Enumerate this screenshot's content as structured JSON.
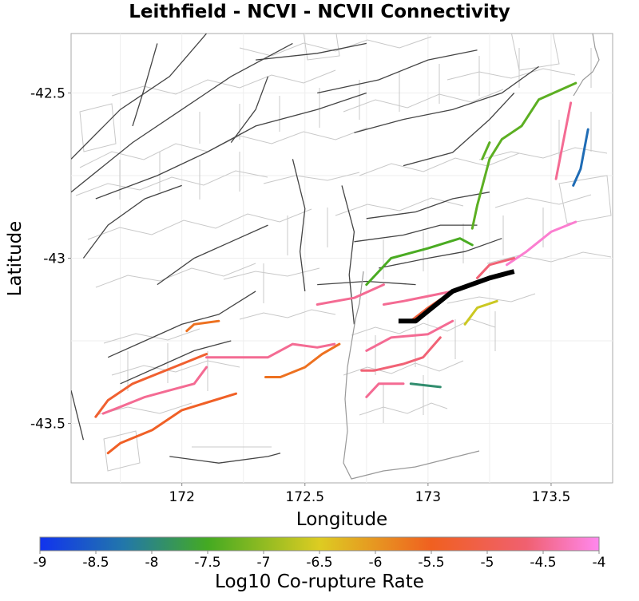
{
  "title": "Leithfield - NCVI - NCVII Connectivity",
  "map": {
    "x_axis_label": "Longitude",
    "y_axis_label": "Latitude",
    "lon_range": [
      171.55,
      173.75
    ],
    "lat_range": [
      -43.68,
      -42.32
    ],
    "x_ticks": [
      {
        "value": 172,
        "label": "172"
      },
      {
        "value": 172.5,
        "label": "172.5"
      },
      {
        "value": 173,
        "label": "173"
      },
      {
        "value": 173.5,
        "label": "173.5"
      }
    ],
    "y_ticks": [
      {
        "value": -42.5,
        "label": "-42.5"
      },
      {
        "value": -43,
        "label": "-43"
      },
      {
        "value": -43.5,
        "label": "-43.5"
      }
    ],
    "background_faults": [
      [
        [
          171.55,
          -42.7
        ],
        [
          171.75,
          -42.55
        ],
        [
          171.95,
          -42.45
        ],
        [
          172.1,
          -42.32
        ]
      ],
      [
        [
          171.55,
          -42.8
        ],
        [
          171.8,
          -42.65
        ],
        [
          172.0,
          -42.55
        ],
        [
          172.2,
          -42.45
        ],
        [
          172.45,
          -42.35
        ]
      ],
      [
        [
          171.65,
          -42.82
        ],
        [
          171.9,
          -42.75
        ],
        [
          172.1,
          -42.68
        ],
        [
          172.3,
          -42.6
        ],
        [
          172.55,
          -42.55
        ],
        [
          172.75,
          -42.5
        ]
      ],
      [
        [
          172.3,
          -42.4
        ],
        [
          172.55,
          -42.38
        ],
        [
          172.75,
          -42.35
        ]
      ],
      [
        [
          172.55,
          -42.5
        ],
        [
          172.8,
          -42.46
        ],
        [
          173.0,
          -42.4
        ],
        [
          173.2,
          -42.37
        ]
      ],
      [
        [
          172.7,
          -42.62
        ],
        [
          172.9,
          -42.58
        ],
        [
          173.1,
          -42.55
        ],
        [
          173.3,
          -42.5
        ],
        [
          173.45,
          -42.42
        ]
      ],
      [
        [
          172.9,
          -42.72
        ],
        [
          173.1,
          -42.68
        ],
        [
          173.25,
          -42.58
        ],
        [
          173.35,
          -42.5
        ]
      ],
      [
        [
          171.6,
          -43.0
        ],
        [
          171.7,
          -42.9
        ],
        [
          171.85,
          -42.82
        ],
        [
          172.0,
          -42.78
        ]
      ],
      [
        [
          172.45,
          -42.7
        ],
        [
          172.5,
          -42.85
        ],
        [
          172.48,
          -42.98
        ],
        [
          172.5,
          -43.1
        ]
      ],
      [
        [
          172.65,
          -42.78
        ],
        [
          172.7,
          -42.92
        ],
        [
          172.68,
          -43.05
        ],
        [
          172.7,
          -43.2
        ]
      ],
      [
        [
          172.75,
          -42.88
        ],
        [
          172.95,
          -42.86
        ],
        [
          173.1,
          -42.82
        ],
        [
          173.25,
          -42.8
        ]
      ],
      [
        [
          172.7,
          -42.95
        ],
        [
          172.9,
          -42.93
        ],
        [
          173.05,
          -42.9
        ],
        [
          173.2,
          -42.9
        ]
      ],
      [
        [
          172.8,
          -43.03
        ],
        [
          173.0,
          -43.0
        ],
        [
          173.15,
          -42.98
        ],
        [
          173.3,
          -42.94
        ]
      ],
      [
        [
          172.55,
          -43.08
        ],
        [
          172.75,
          -43.07
        ],
        [
          172.95,
          -43.08
        ]
      ],
      [
        [
          171.9,
          -43.08
        ],
        [
          172.05,
          -43.0
        ],
        [
          172.2,
          -42.95
        ],
        [
          172.35,
          -42.9
        ]
      ],
      [
        [
          171.7,
          -43.3
        ],
        [
          171.85,
          -43.25
        ],
        [
          172.0,
          -43.2
        ],
        [
          172.15,
          -43.17
        ],
        [
          172.3,
          -43.1
        ]
      ],
      [
        [
          171.75,
          -43.38
        ],
        [
          171.9,
          -43.33
        ],
        [
          172.05,
          -43.28
        ],
        [
          172.2,
          -43.25
        ]
      ],
      [
        [
          171.55,
          -43.4
        ],
        [
          171.6,
          -43.55
        ]
      ],
      [
        [
          171.8,
          -42.6
        ],
        [
          171.85,
          -42.48
        ],
        [
          171.9,
          -42.35
        ]
      ],
      [
        [
          172.2,
          -42.65
        ],
        [
          172.3,
          -42.55
        ],
        [
          172.35,
          -42.45
        ]
      ],
      [
        [
          171.95,
          -43.6
        ],
        [
          172.15,
          -43.62
        ],
        [
          172.35,
          -43.6
        ],
        [
          172.4,
          -43.59
        ]
      ]
    ],
    "colored_ruptures": [
      {
        "log_rate": -4.6,
        "points": [
          [
            173.58,
            -42.53
          ],
          [
            173.52,
            -42.76
          ]
        ]
      },
      {
        "log_rate": -8.3,
        "points": [
          [
            173.65,
            -42.61
          ],
          [
            173.62,
            -42.73
          ],
          [
            173.59,
            -42.78
          ]
        ]
      },
      {
        "log_rate": -7.2,
        "points": [
          [
            173.6,
            -42.47
          ],
          [
            173.45,
            -42.52
          ],
          [
            173.38,
            -42.6
          ],
          [
            173.3,
            -42.64
          ],
          [
            173.25,
            -42.7
          ],
          [
            173.2,
            -42.84
          ],
          [
            173.18,
            -42.91
          ]
        ]
      },
      {
        "log_rate": -7.2,
        "points": [
          [
            173.22,
            -42.7
          ],
          [
            173.25,
            -42.65
          ]
        ]
      },
      {
        "log_rate": -7.3,
        "points": [
          [
            173.18,
            -42.96
          ],
          [
            173.13,
            -42.94
          ],
          [
            173.0,
            -42.97
          ],
          [
            172.85,
            -43.0
          ],
          [
            172.8,
            -43.04
          ],
          [
            172.75,
            -43.08
          ]
        ]
      },
      {
        "log_rate": -4.2,
        "points": [
          [
            173.6,
            -42.89
          ],
          [
            173.5,
            -42.92
          ],
          [
            173.4,
            -42.98
          ],
          [
            173.32,
            -43.02
          ]
        ]
      },
      {
        "log_rate": -4.8,
        "points": [
          [
            173.35,
            -43.0
          ],
          [
            173.25,
            -43.02
          ],
          [
            173.2,
            -43.06
          ]
        ]
      },
      {
        "log_rate": -4.6,
        "points": [
          [
            173.3,
            -43.05
          ],
          [
            173.1,
            -43.1
          ],
          [
            172.9,
            -43.13
          ],
          [
            172.82,
            -43.14
          ]
        ]
      },
      {
        "log_rate": -4.6,
        "points": [
          [
            172.82,
            -43.08
          ],
          [
            172.7,
            -43.12
          ],
          [
            172.55,
            -43.14
          ]
        ]
      },
      {
        "log_rate": -6.6,
        "points": [
          [
            173.28,
            -43.13
          ],
          [
            173.2,
            -43.15
          ],
          [
            173.15,
            -43.2
          ]
        ]
      },
      {
        "log_rate": -5.4,
        "points": [
          [
            173.1,
            -43.1
          ],
          [
            173.0,
            -43.15
          ],
          [
            172.93,
            -43.19
          ]
        ]
      },
      {
        "log_rate": -4.6,
        "points": [
          [
            173.1,
            -43.19
          ],
          [
            173.0,
            -43.23
          ],
          [
            172.85,
            -43.24
          ],
          [
            172.75,
            -43.28
          ]
        ]
      },
      {
        "log_rate": -4.8,
        "points": [
          [
            173.05,
            -43.24
          ],
          [
            172.98,
            -43.3
          ],
          [
            172.9,
            -43.32
          ],
          [
            172.78,
            -43.34
          ],
          [
            172.73,
            -43.34
          ]
        ]
      },
      {
        "log_rate": -4.6,
        "points": [
          [
            172.9,
            -43.38
          ],
          [
            172.8,
            -43.38
          ],
          [
            172.75,
            -43.42
          ]
        ]
      },
      {
        "log_rate": -7.8,
        "points": [
          [
            172.93,
            -43.38
          ],
          [
            173.05,
            -43.39
          ]
        ]
      },
      {
        "log_rate": -4.6,
        "points": [
          [
            172.62,
            -43.26
          ],
          [
            172.55,
            -43.27
          ],
          [
            172.45,
            -43.26
          ],
          [
            172.35,
            -43.3
          ],
          [
            172.2,
            -43.3
          ],
          [
            172.1,
            -43.3
          ]
        ]
      },
      {
        "log_rate": -5.8,
        "points": [
          [
            172.64,
            -43.26
          ],
          [
            172.57,
            -43.29
          ],
          [
            172.5,
            -43.33
          ],
          [
            172.4,
            -43.36
          ],
          [
            172.34,
            -43.36
          ]
        ]
      },
      {
        "log_rate": -5.8,
        "points": [
          [
            172.15,
            -43.19
          ],
          [
            172.05,
            -43.2
          ],
          [
            172.02,
            -43.22
          ]
        ]
      },
      {
        "log_rate": -5.5,
        "points": [
          [
            172.1,
            -43.29
          ],
          [
            172.0,
            -43.32
          ],
          [
            171.9,
            -43.35
          ],
          [
            171.8,
            -43.38
          ],
          [
            171.7,
            -43.43
          ],
          [
            171.65,
            -43.48
          ]
        ]
      },
      {
        "log_rate": -4.6,
        "points": [
          [
            172.1,
            -43.33
          ],
          [
            172.05,
            -43.38
          ],
          [
            171.95,
            -43.4
          ],
          [
            171.85,
            -43.42
          ],
          [
            171.75,
            -43.45
          ],
          [
            171.68,
            -43.47
          ]
        ]
      },
      {
        "log_rate": -5.6,
        "points": [
          [
            172.22,
            -43.41
          ],
          [
            172.0,
            -43.46
          ],
          [
            171.88,
            -43.52
          ],
          [
            171.75,
            -43.56
          ],
          [
            171.7,
            -43.59
          ]
        ]
      }
    ],
    "highlighted_fault": {
      "name": "Leithfield",
      "points": [
        [
          172.88,
          -43.19
        ],
        [
          172.95,
          -43.19
        ],
        [
          173.0,
          -43.16
        ],
        [
          173.1,
          -43.1
        ],
        [
          173.25,
          -43.06
        ],
        [
          173.35,
          -43.04
        ]
      ]
    }
  },
  "colorbar": {
    "label": "Log10 Co-rupture Rate",
    "min": -9,
    "max": -4,
    "stops": [
      "#1133ee",
      "#2277aa",
      "#44aa22",
      "#ddcc22",
      "#f06020",
      "#f06070",
      "#ff88ee"
    ],
    "ticks": [
      "-9",
      "-8.5",
      "-8",
      "-7.5",
      "-7",
      "-6.5",
      "-6",
      "-5.5",
      "-5",
      "-4.5",
      "-4"
    ]
  }
}
